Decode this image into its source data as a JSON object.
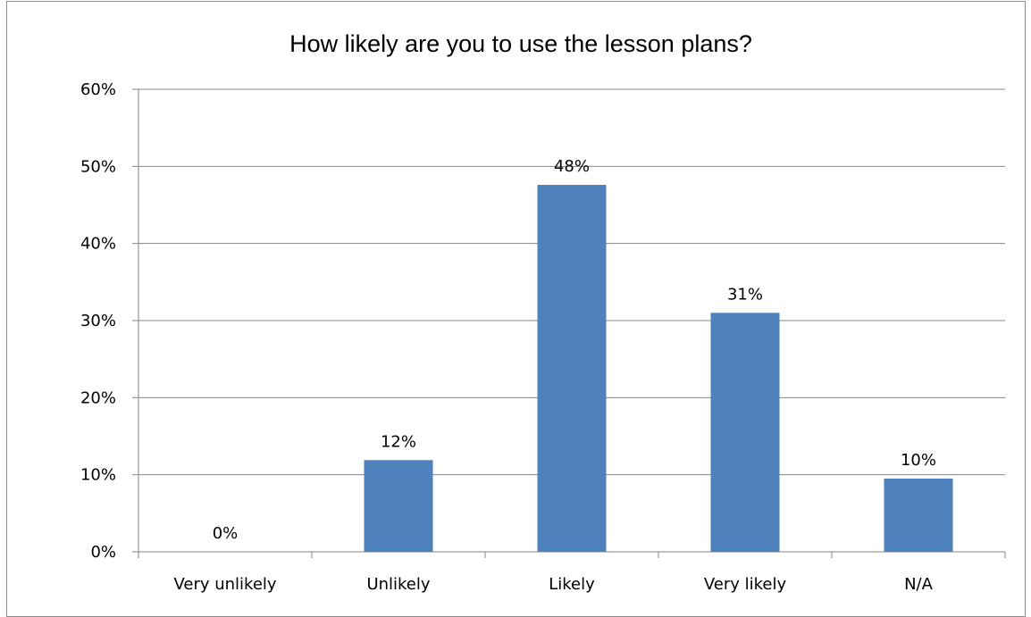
{
  "chart_data": {
    "type": "bar",
    "title": "How likely are you to use the lesson plans?",
    "xlabel": "",
    "ylabel": "",
    "categories": [
      "Very unlikely",
      "Unlikely",
      "Likely",
      "Very likely",
      "N/A"
    ],
    "values": [
      0,
      12,
      48,
      31,
      10
    ],
    "data_labels": [
      "0%",
      "12%",
      "48%",
      "31%",
      "10%"
    ],
    "exact_values": [
      0,
      11.9,
      47.6,
      31.0,
      9.5
    ],
    "ylim": [
      0,
      60
    ],
    "y_ticks": [
      0,
      10,
      20,
      30,
      40,
      50,
      60
    ],
    "y_tick_labels": [
      "0%",
      "10%",
      "20%",
      "30%",
      "40%",
      "50%",
      "60%"
    ],
    "grid": true,
    "legend": "none",
    "colors": {
      "bar": "#4F81BD",
      "grid": "#868686",
      "axis": "#868686",
      "text": "#000000"
    }
  }
}
